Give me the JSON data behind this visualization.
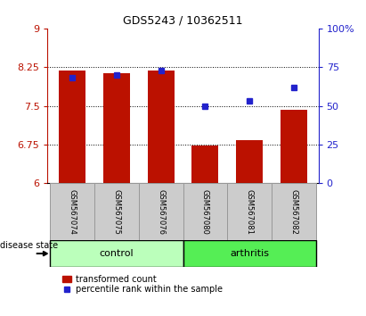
{
  "title": "GDS5243 / 10362511",
  "samples": [
    "GSM567074",
    "GSM567075",
    "GSM567076",
    "GSM567080",
    "GSM567081",
    "GSM567082"
  ],
  "bar_values": [
    8.18,
    8.13,
    8.18,
    6.73,
    6.84,
    7.43
  ],
  "percentile_values": [
    68,
    70,
    73,
    50,
    53,
    62
  ],
  "bar_color": "#bb1100",
  "dot_color": "#2222cc",
  "ylim_left": [
    6,
    9
  ],
  "ylim_right": [
    0,
    100
  ],
  "yticks_left": [
    6,
    6.75,
    7.5,
    8.25,
    9
  ],
  "yticks_right": [
    0,
    25,
    50,
    75,
    100
  ],
  "baseline": 6,
  "control_color": "#bbffbb",
  "arthritis_color": "#55ee55",
  "disease_state_label": "disease state",
  "legend_bar_label": "transformed count",
  "legend_dot_label": "percentile rank within the sample",
  "sample_box_color": "#cccccc",
  "fig_bg": "#ffffff",
  "title_fontsize": 9,
  "axis_fontsize": 8,
  "sample_fontsize": 6,
  "group_fontsize": 8,
  "legend_fontsize": 7
}
